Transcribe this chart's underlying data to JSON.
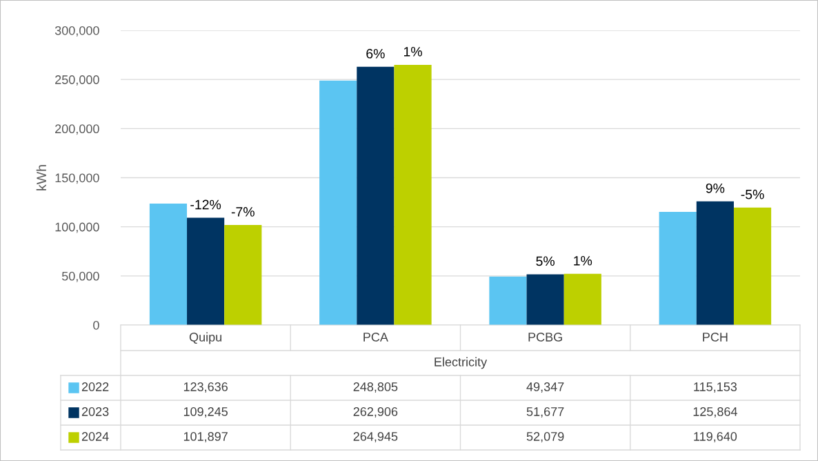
{
  "chart_data": {
    "type": "bar",
    "ylabel": "kWh",
    "xlabel": "Electricity",
    "categories": [
      "Quipu",
      "PCA",
      "PCBG",
      "PCH"
    ],
    "series": [
      {
        "name": "2022",
        "color": "#5bc5f2",
        "values": [
          123636,
          248805,
          49347,
          115153
        ],
        "value_labels": [
          "123,636",
          "248,805",
          "49,347",
          "115,153"
        ]
      },
      {
        "name": "2023",
        "color": "#003462",
        "values": [
          109245,
          262906,
          51677,
          125864
        ],
        "value_labels": [
          "109,245",
          "262,906",
          "51,677",
          "125,864"
        ]
      },
      {
        "name": "2024",
        "color": "#bdd000",
        "values": [
          101897,
          264945,
          52079,
          119640
        ],
        "value_labels": [
          "101,897",
          "264,945",
          "52,079",
          "119,640"
        ]
      }
    ],
    "annotations": [
      {
        "text": "-12%",
        "x": "Quipu",
        "y": 109245
      },
      {
        "text": "6%",
        "x": "PCA",
        "y": 262906
      },
      {
        "text": "5%",
        "x": "PCBG",
        "y": 51677
      },
      {
        "text": "9%",
        "x": "PCH",
        "y": 125864
      },
      {
        "text": "-7%",
        "y": 101897
      },
      {
        "text": "1%",
        "y": 264945
      },
      {
        "text": "1%",
        "y": 52079
      },
      {
        "text": "-5%",
        "y": 119640
      }
    ],
    "ylim": [
      0,
      300000
    ],
    "yticks": [
      0,
      {
        "value": 50000,
        "label": "50,000"
      },
      {
        "value": 100000,
        "label": "100,000"
      },
      {
        "value": 150000,
        "label": "150,000"
      },
      {
        "value": 200000,
        "label": "200,000"
      },
      {
        "value": 250000,
        "label": "250,000"
      },
      {
        "value": 300000,
        "label": "300,000"
      }
    ],
    "grid": "y",
    "legend": "bottom"
  }
}
